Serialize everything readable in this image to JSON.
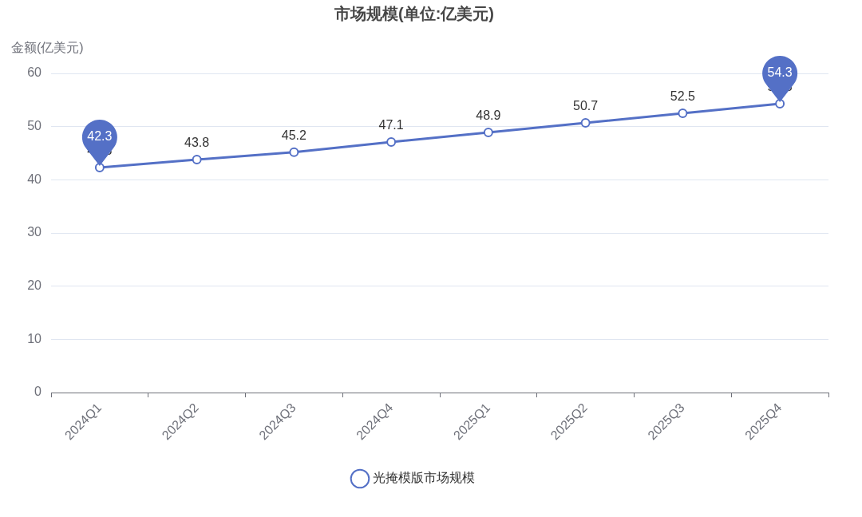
{
  "chart_data": {
    "type": "line",
    "title": "市场规模(单位:亿美元)",
    "ylabel": "金额(亿美元)",
    "categories": [
      "2024Q1",
      "2024Q2",
      "2024Q3",
      "2024Q4",
      "2025Q1",
      "2025Q2",
      "2025Q3",
      "2025Q4"
    ],
    "series": [
      {
        "name": "光掩模版市场规模",
        "color": "#5470c6",
        "values": [
          42.3,
          43.8,
          45.2,
          47.1,
          48.9,
          50.7,
          52.5,
          54.3
        ]
      }
    ],
    "ylim": [
      0,
      60
    ],
    "yticks": [
      0,
      10,
      20,
      30,
      40,
      50,
      60
    ],
    "grid": "y",
    "legend": "bottom",
    "marker": "circle",
    "line_style": "solid",
    "data_labels": true,
    "annotations": [
      {
        "text": "42.3",
        "x": "2024Q1",
        "y": 42.3
      },
      {
        "text": "54.3",
        "x": "2025Q4",
        "y": 54.3
      }
    ]
  }
}
